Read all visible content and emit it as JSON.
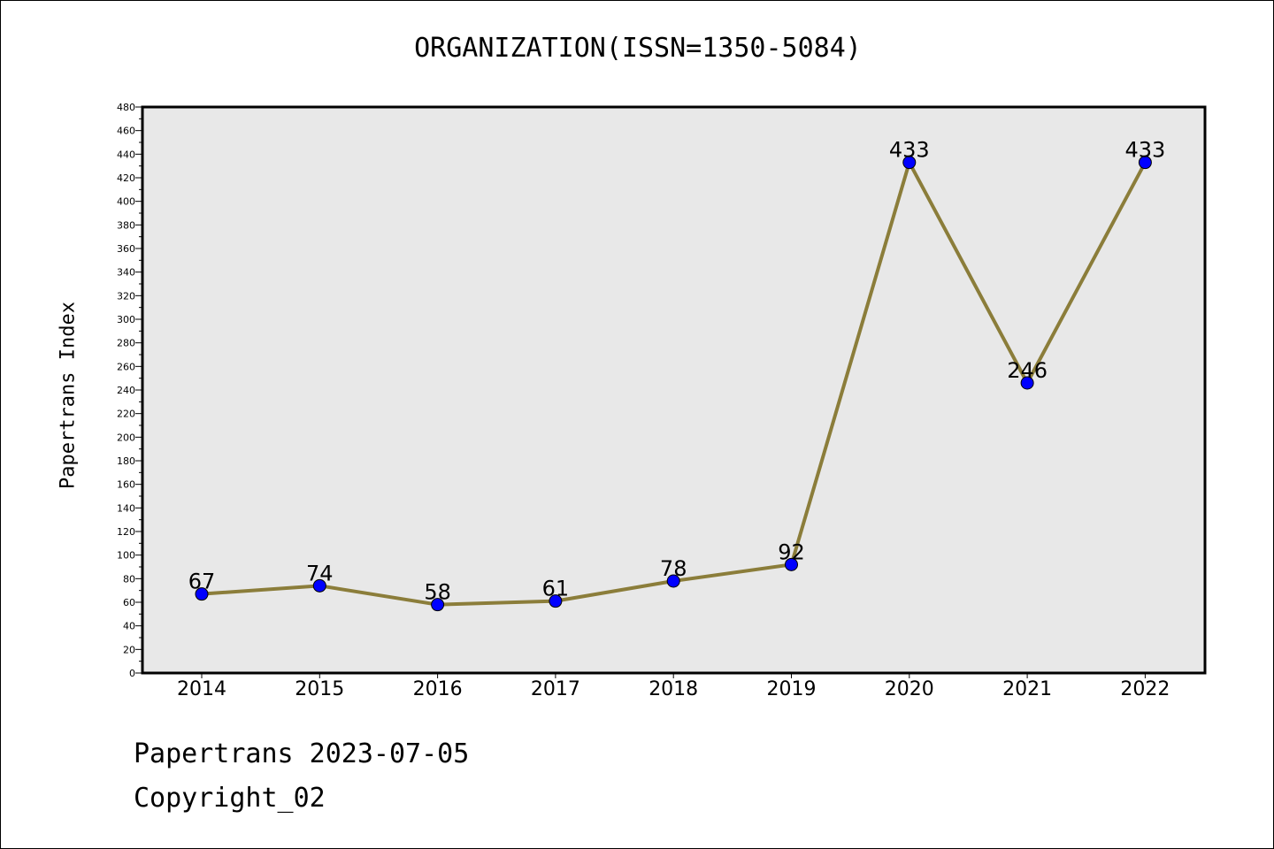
{
  "chart_data": {
    "type": "line",
    "title": "ORGANIZATION(ISSN=1350-5084)",
    "xlabel": "",
    "ylabel": "Papertrans Index",
    "categories": [
      "2014",
      "2015",
      "2016",
      "2017",
      "2018",
      "2019",
      "2020",
      "2021",
      "2022"
    ],
    "values": [
      67,
      74,
      58,
      61,
      78,
      92,
      433,
      246,
      433
    ],
    "data_labels": [
      "67",
      "74",
      "58",
      "61",
      "78",
      "92",
      "433",
      "246",
      "433"
    ],
    "ylim": [
      0,
      480
    ],
    "yticks": [
      0,
      20,
      40,
      60,
      80,
      100,
      120,
      140,
      160,
      180,
      200,
      220,
      240,
      260,
      280,
      300,
      320,
      340,
      360,
      380,
      400,
      420,
      440,
      460,
      480
    ],
    "grid": false,
    "legend": "none",
    "colors": {
      "line": "#8b7d3a",
      "marker": "#0000ff",
      "plot_background": "#e8e8e8"
    }
  },
  "footer": {
    "line1": "Papertrans 2023-07-05",
    "line2": "Copyright_02"
  }
}
